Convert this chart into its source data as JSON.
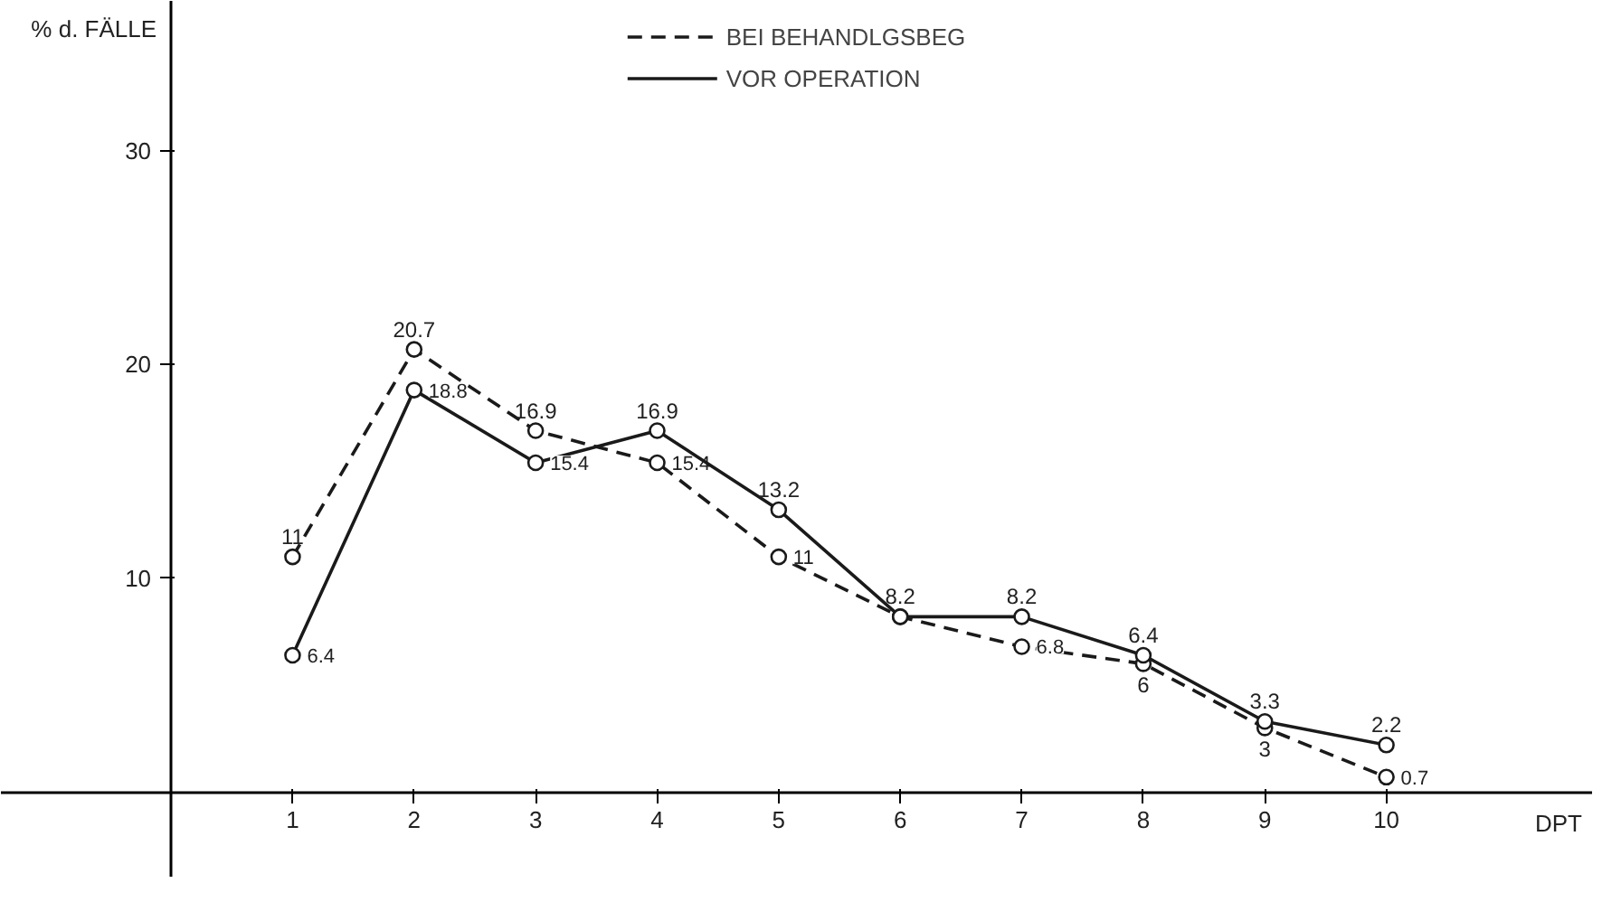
{
  "chart_data": {
    "type": "line",
    "xlabel": "DPT",
    "ylabel": "% d. FÄLLE",
    "x": [
      1,
      2,
      3,
      4,
      5,
      6,
      7,
      8,
      9,
      10
    ],
    "series": [
      {
        "name": "BEI BEHANDLGSBEG",
        "color": "#1a1a1a",
        "line_style": "dashed",
        "values": [
          11,
          20.7,
          16.9,
          15.4,
          11,
          8.2,
          6.8,
          6,
          3,
          0.7
        ],
        "value_labels": [
          "11",
          "20.7",
          "16.9",
          "15.4",
          "11",
          null,
          "6.8",
          "6",
          "3",
          "0.7"
        ]
      },
      {
        "name": "VOR OPERATION",
        "color": "#1a1a1a",
        "line_style": "solid",
        "values": [
          6.4,
          18.8,
          15.4,
          16.9,
          13.2,
          8.2,
          8.2,
          6.4,
          3.3,
          2.2
        ],
        "value_labels": [
          "6.4",
          "18.8",
          "15.4",
          "16.9",
          "13.2",
          "8.2",
          "8.2",
          "6.4",
          "3.3",
          "2.2"
        ]
      }
    ],
    "xlim": [
      -1.4,
      11.7
    ],
    "ylim": [
      -4,
      37
    ],
    "xticks": [
      1,
      2,
      3,
      4,
      5,
      6,
      7,
      8,
      9,
      10
    ],
    "yticks": [
      10,
      20,
      30
    ],
    "marker": "circle",
    "grid": false,
    "legend": "top"
  }
}
